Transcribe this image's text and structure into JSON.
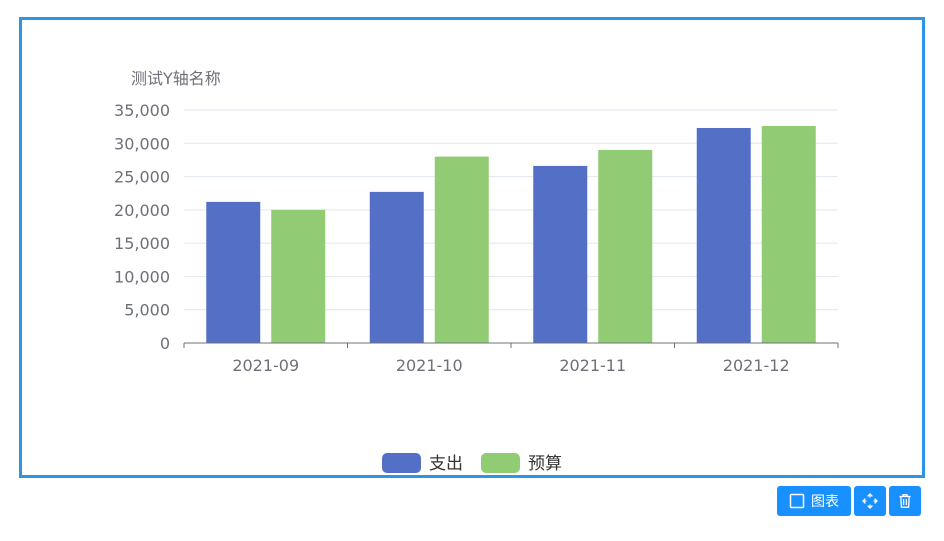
{
  "chart_data": {
    "type": "bar",
    "ylabel": "测试Y轴名称",
    "categories": [
      "2021-09",
      "2021-10",
      "2021-11",
      "2021-12"
    ],
    "ylim": [
      0,
      35000
    ],
    "yticks": [
      0,
      5000,
      10000,
      15000,
      20000,
      25000,
      30000,
      35000
    ],
    "ytick_labels": [
      "0",
      "5,000",
      "10,000",
      "15,000",
      "20,000",
      "25,000",
      "30,000",
      "35,000"
    ],
    "grid": true,
    "legend_position": "bottom-center",
    "series": [
      {
        "name": "支出",
        "color": "#5470c6",
        "values": [
          21200,
          22700,
          26600,
          32300
        ]
      },
      {
        "name": "预算",
        "color": "#91cc75",
        "values": [
          20000,
          28000,
          29000,
          32600
        ]
      }
    ]
  },
  "toolbar": {
    "chart_label": "图表",
    "chart_icon": "square-icon",
    "move_icon": "move-arrows-icon",
    "delete_icon": "trash-icon"
  },
  "colors": {
    "frame_border": "#2e95e6",
    "toolbar_bg": "#1890ff"
  }
}
